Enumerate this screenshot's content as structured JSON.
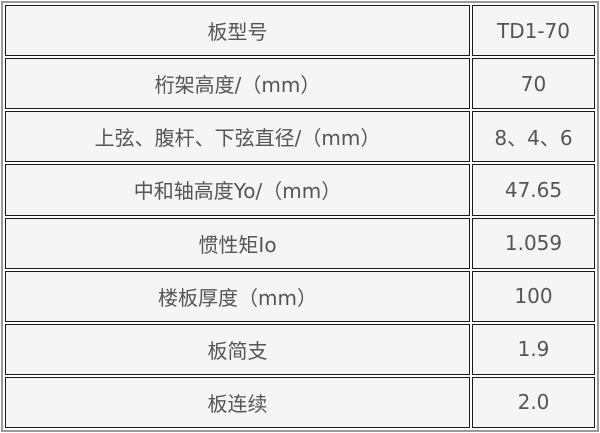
{
  "rows": [
    {
      "label": "板型号",
      "value": "TD1-70"
    },
    {
      "label": "桁架高度/（mm）",
      "value": "70"
    },
    {
      "label": "上弦、腹杆、下弦直径/（mm）",
      "value": "8、4、6"
    },
    {
      "label": "中和轴高度Yo/（mm）",
      "value": "47.65"
    },
    {
      "label": "惯性矩Io",
      "value": "1.059"
    },
    {
      "label": "楼板厚度（mm）",
      "value": "100"
    },
    {
      "label": "板简支",
      "value": "1.9"
    },
    {
      "label": "板连续",
      "value": "2.0"
    }
  ]
}
